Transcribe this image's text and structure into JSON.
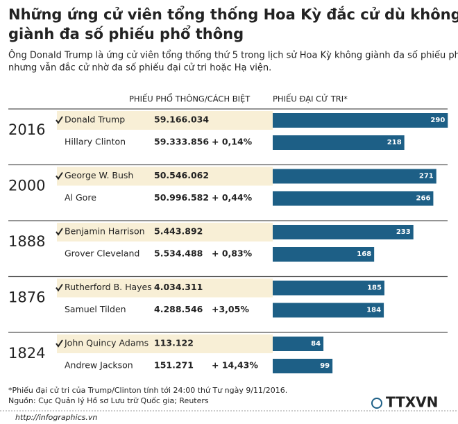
{
  "title_lines": [
    "Những ứng cử viên tổng thống Hoa Kỳ đắc cử dù không",
    "giành đa số phiếu phổ thông"
  ],
  "subtitle_lines": [
    "Ông Donald Trump là ứng cử viên tổng thống thứ 5 trong lịch sử Hoa Kỳ không giành đa số phiếu phổ thông",
    "nhưng vẫn đắc cử nhờ đa số phiếu đại cử tri hoặc Hạ viện."
  ],
  "headers": {
    "popular": "PHIẾU PHỔ THÔNG/CÁCH BIỆT",
    "electoral": "PHIẾU ĐẠI CỬ TRI*"
  },
  "elections": [
    {
      "year": "2016",
      "candidates": [
        {
          "name": "Donald Trump",
          "popular": "59.166.034",
          "electoral": 290
        },
        {
          "name": "Hillary Clinton",
          "popular": "59.333.856",
          "margin": "+ 0,14%",
          "electoral": 218
        }
      ]
    },
    {
      "year": "2000",
      "candidates": [
        {
          "name": "George W. Bush",
          "popular": "50.546.062",
          "electoral": 271
        },
        {
          "name": "Al Gore",
          "popular": "50.996.582",
          "margin": "+ 0,44%",
          "electoral": 266
        }
      ]
    },
    {
      "year": "1888",
      "candidates": [
        {
          "name": "Benjamin Harrison",
          "popular": "5.443.892",
          "electoral": 233
        },
        {
          "name": "Grover Cleveland",
          "popular": "5.534.488",
          "margin": "+ 0,83%",
          "electoral": 168
        }
      ]
    },
    {
      "year": "1876",
      "candidates": [
        {
          "name": "Rutherford B. Hayes",
          "popular": "4.034.311",
          "electoral": 185
        },
        {
          "name": "Samuel Tilden",
          "popular": "4.288.546",
          "margin": "+3,05%",
          "electoral": 184
        }
      ]
    },
    {
      "year": "1824",
      "candidates": [
        {
          "name": "John Quincy Adams",
          "popular": "113.122",
          "electoral": 84
        },
        {
          "name": "Andrew Jackson",
          "popular": "151.271",
          "margin": "+ 14,43%",
          "electoral": 99
        }
      ]
    }
  ],
  "footnote": "*Phiếu đại cử tri của Trump/Clinton tính tới 24:00 thứ Tư ngày 9/11/2016.",
  "source": "Nguồn: Cục Quản lý Hồ sơ Lưu trữ Quốc gia; Reuters",
  "website": "http://infographics.vn",
  "logo": "TTXVN"
}
